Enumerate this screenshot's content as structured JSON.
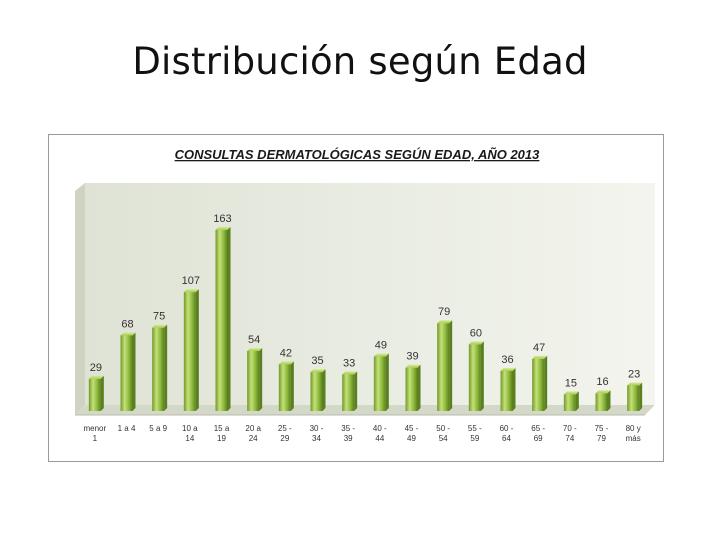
{
  "slide": {
    "title": "Distribución según Edad"
  },
  "chart_data": {
    "type": "bar",
    "title": "CONSULTAS DERMATOLÓGICAS SEGÚN EDAD, AÑO 2013",
    "xlabel": "",
    "ylabel": "",
    "ylim": [
      0,
      180
    ],
    "grid": false,
    "legend": "none",
    "categories": [
      [
        "menor",
        "1"
      ],
      [
        "1 a 4"
      ],
      [
        "5 a 9"
      ],
      [
        "10 a",
        "14"
      ],
      [
        "15 a",
        "19"
      ],
      [
        "20 a",
        "24"
      ],
      [
        "25 -",
        "29"
      ],
      [
        "30 -",
        "34"
      ],
      [
        "35 -",
        "39"
      ],
      [
        "40 -",
        "44"
      ],
      [
        "45 -",
        "49"
      ],
      [
        "50 -",
        "54"
      ],
      [
        "55 -",
        "59"
      ],
      [
        "60 -",
        "64"
      ],
      [
        "65 -",
        "69"
      ],
      [
        "70 -",
        "74"
      ],
      [
        "75 -",
        "79"
      ],
      [
        "80 y",
        "más"
      ]
    ],
    "series": [
      {
        "values": [
          29,
          68,
          75,
          107,
          163,
          54,
          42,
          35,
          33,
          49,
          39,
          79,
          60,
          36,
          47,
          15,
          16,
          23
        ]
      }
    ],
    "colors": {
      "bar_light": "#c5e07a",
      "bar_mid": "#8cb83a",
      "bar_dark": "#5a7f1e",
      "wall": "#eef1e6",
      "floor": "#d9dccf"
    }
  }
}
